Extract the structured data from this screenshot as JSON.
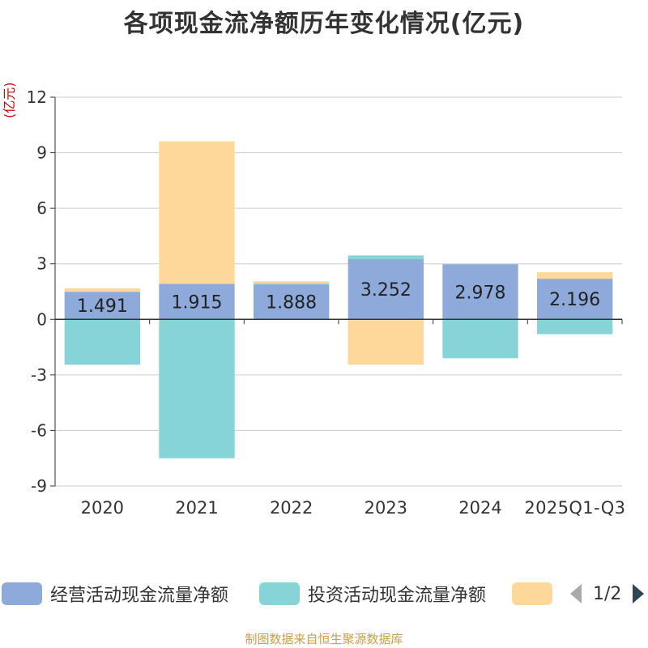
{
  "title": "各项现金流净额历年变化情况(亿元)",
  "unit_label": "(亿元)",
  "legend": {
    "items": [
      {
        "label": "经营活动现金流量净额",
        "color": "#8eaadb"
      },
      {
        "label": "投资活动现金流量净额",
        "color": "#86d4d8"
      },
      {
        "label": "",
        "color": "#fdd89a"
      }
    ],
    "pager": "1/2"
  },
  "source": "制图数据来自恒生聚源数据库",
  "chart_data": {
    "type": "bar",
    "stacked": true,
    "title": "各项现金流净额历年变化情况(亿元)",
    "ylabel": "(亿元)",
    "xlabel": "",
    "categories": [
      "2020",
      "2021",
      "2022",
      "2023",
      "2024",
      "2025Q1-Q3"
    ],
    "ylim": [
      -9,
      12
    ],
    "yticks": [
      12,
      9,
      6,
      3,
      0,
      -3,
      -6,
      -9
    ],
    "series": [
      {
        "name": "经营活动现金流量净额",
        "color": "#8eaadb",
        "values": [
          1.491,
          1.915,
          1.888,
          3.252,
          2.978,
          2.196
        ],
        "show_labels": true
      },
      {
        "name": "投资活动现金流量净额",
        "color": "#86d4d8",
        "values": [
          -2.45,
          -7.5,
          0.05,
          0.2,
          -2.1,
          -0.8
        ],
        "show_labels": false
      },
      {
        "name": "",
        "color": "#fdd89a",
        "values": [
          0.18,
          7.7,
          0.12,
          -2.45,
          0.0,
          0.35
        ],
        "show_labels": false
      }
    ]
  }
}
